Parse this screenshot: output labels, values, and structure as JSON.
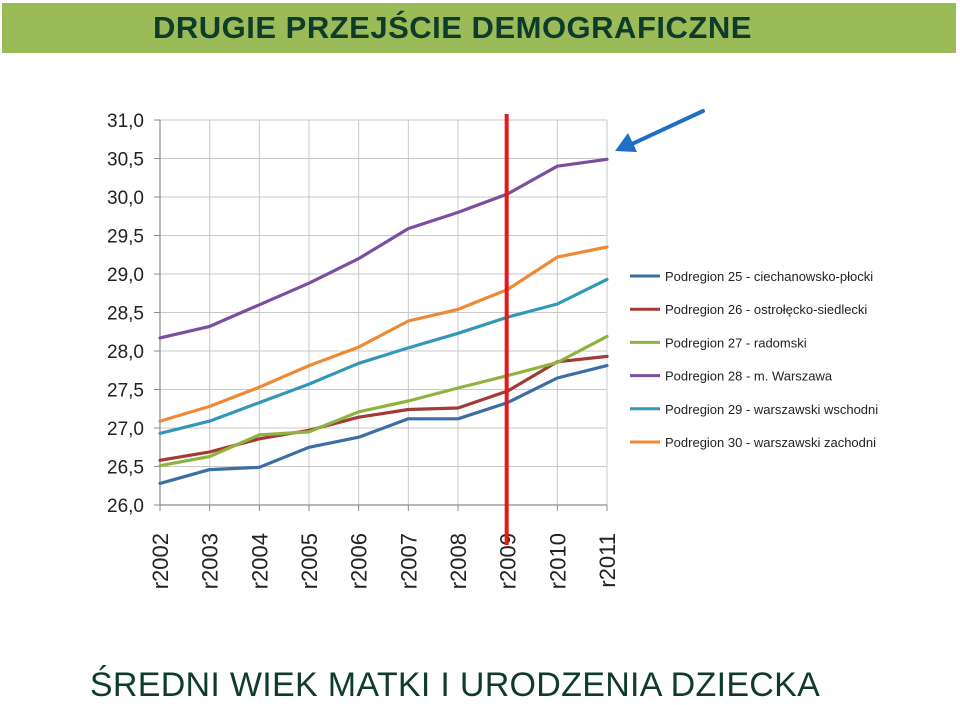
{
  "header": {
    "title": "DRUGIE PRZEJŚCIE DEMOGRAFICZNE"
  },
  "footer": {
    "title": "ŚREDNI WIEK MATKI I URODZENIA DZIECKA"
  },
  "chart_data": {
    "type": "line",
    "title": "",
    "xlabel": "",
    "ylabel": "",
    "categories": [
      "r2002",
      "r2003",
      "r2004",
      "r2005",
      "r2006",
      "r2007",
      "r2008",
      "r2009",
      "r2010",
      "r2011"
    ],
    "ylim": [
      26.0,
      31.0
    ],
    "yticks": [
      "26,0",
      "26,5",
      "27,0",
      "27,5",
      "28,0",
      "28,5",
      "29,0",
      "29,5",
      "30,0",
      "30,5",
      "31,0"
    ],
    "grid": true,
    "legend_position": "right",
    "marker_category": "r2009",
    "marker_color": "#e31a1c",
    "arrow_color": "#1f6fc5",
    "series": [
      {
        "name": "Podregion 25 - ciechanowsko-płocki",
        "color": "#3a6ea5",
        "values": [
          26.28,
          26.46,
          26.49,
          26.75,
          26.88,
          27.12,
          27.12,
          27.33,
          27.65,
          27.81
        ]
      },
      {
        "name": "Podregion 26 - ostrołęcko-siedlecki",
        "color": "#a33a36",
        "values": [
          26.58,
          26.69,
          26.86,
          26.97,
          27.14,
          27.24,
          27.26,
          27.48,
          27.86,
          27.93
        ]
      },
      {
        "name": "Podregion 27 - radomski",
        "color": "#8fb33f",
        "values": [
          26.51,
          26.63,
          26.91,
          26.95,
          27.21,
          27.35,
          27.52,
          27.68,
          27.85,
          28.19
        ]
      },
      {
        "name": "Podregion 28 - m. Warszawa",
        "color": "#7a4f9f",
        "values": [
          28.17,
          28.32,
          28.6,
          28.88,
          29.2,
          29.59,
          29.8,
          30.04,
          30.4,
          30.49
        ]
      },
      {
        "name": "Podregion 29 - warszawski  wschodni",
        "color": "#3397b8",
        "values": [
          26.93,
          27.09,
          27.33,
          27.57,
          27.84,
          28.04,
          28.23,
          28.44,
          28.61,
          28.93
        ]
      },
      {
        "name": "Podregion 30 - warszawski  zachodni",
        "color": "#ee8a36",
        "values": [
          27.09,
          27.28,
          27.53,
          27.81,
          28.05,
          28.39,
          28.54,
          28.8,
          29.22,
          29.35
        ]
      }
    ]
  }
}
